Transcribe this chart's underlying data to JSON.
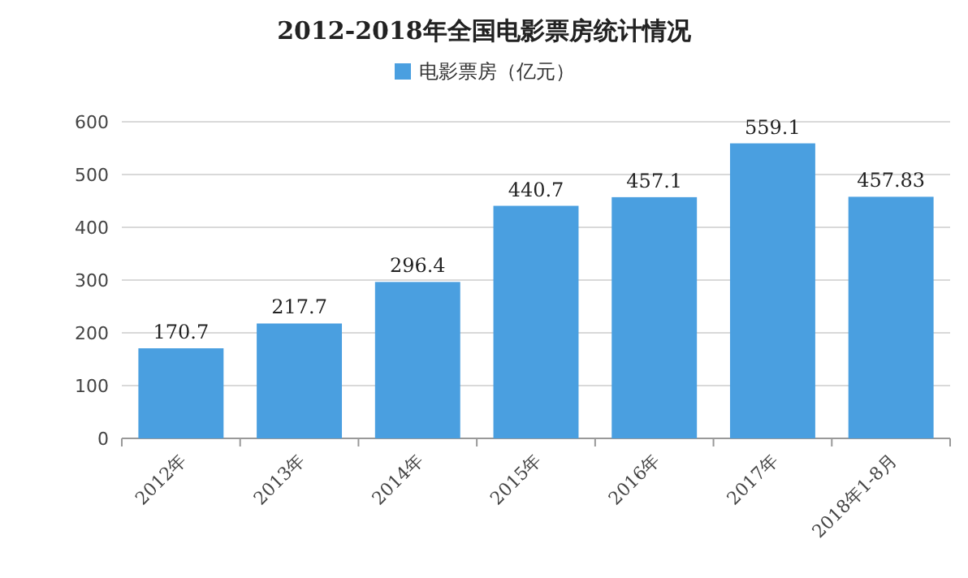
{
  "chart_data": {
    "type": "bar",
    "title": "2012-2018年全国电影票房统计情况",
    "categories": [
      "2012年",
      "2013年",
      "2014年",
      "2015年",
      "2016年",
      "2017年",
      "2018年1-8月"
    ],
    "series": [
      {
        "name": "电影票房（亿元）",
        "color": "#4a9fe0",
        "values": [
          170.7,
          217.7,
          296.4,
          440.7,
          457.1,
          559.1,
          457.83
        ]
      }
    ],
    "value_labels": [
      "170.7",
      "217.7",
      "296.4",
      "440.7",
      "457.1",
      "559.1",
      "457.83"
    ],
    "ylim": [
      0,
      600
    ],
    "yticks": [
      0,
      100,
      200,
      300,
      400,
      500,
      600
    ],
    "grid": "y",
    "legend": "top"
  }
}
